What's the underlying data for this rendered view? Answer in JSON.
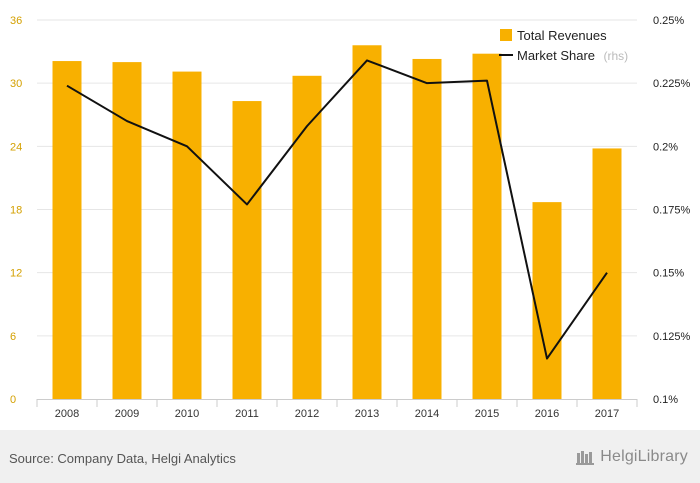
{
  "chart_data": {
    "type": "bar",
    "categories": [
      "2008",
      "2009",
      "2010",
      "2011",
      "2012",
      "2013",
      "2014",
      "2015",
      "2016",
      "2017"
    ],
    "series": [
      {
        "name": "Total Revenues",
        "type": "bar",
        "axis": "left",
        "values": [
          32.1,
          32.0,
          31.1,
          28.3,
          30.7,
          33.6,
          32.3,
          32.8,
          18.7,
          23.8
        ]
      },
      {
        "name": "Market Share",
        "name_note": "(rhs)",
        "type": "line",
        "axis": "right",
        "values": [
          0.224,
          0.21,
          0.2,
          0.177,
          0.208,
          0.234,
          0.225,
          0.226,
          0.116,
          0.15
        ]
      }
    ],
    "y_left": {
      "ylim": [
        0,
        36
      ],
      "ticks": [
        "0",
        "6",
        "12",
        "18",
        "24",
        "30",
        "36"
      ],
      "tick_values": [
        0,
        6,
        12,
        18,
        24,
        30,
        36
      ]
    },
    "y_right": {
      "ylim": [
        0.1,
        0.25
      ],
      "ticks": [
        "0.1%",
        "0.125%",
        "0.15%",
        "0.175%",
        "0.2%",
        "0.225%",
        "0.25%"
      ],
      "tick_values": [
        0.1,
        0.125,
        0.15,
        0.175,
        0.2,
        0.225,
        0.25
      ]
    },
    "grid": true,
    "legend_position": "top-right",
    "colors": {
      "bar": "#f8b000",
      "line": "#111111",
      "grid": "#e6e6e6",
      "left_ticks": "#d4a000"
    }
  },
  "footer": {
    "source": "Source: Company Data, Helgi Analytics",
    "brand": "HelgiLibrary"
  }
}
